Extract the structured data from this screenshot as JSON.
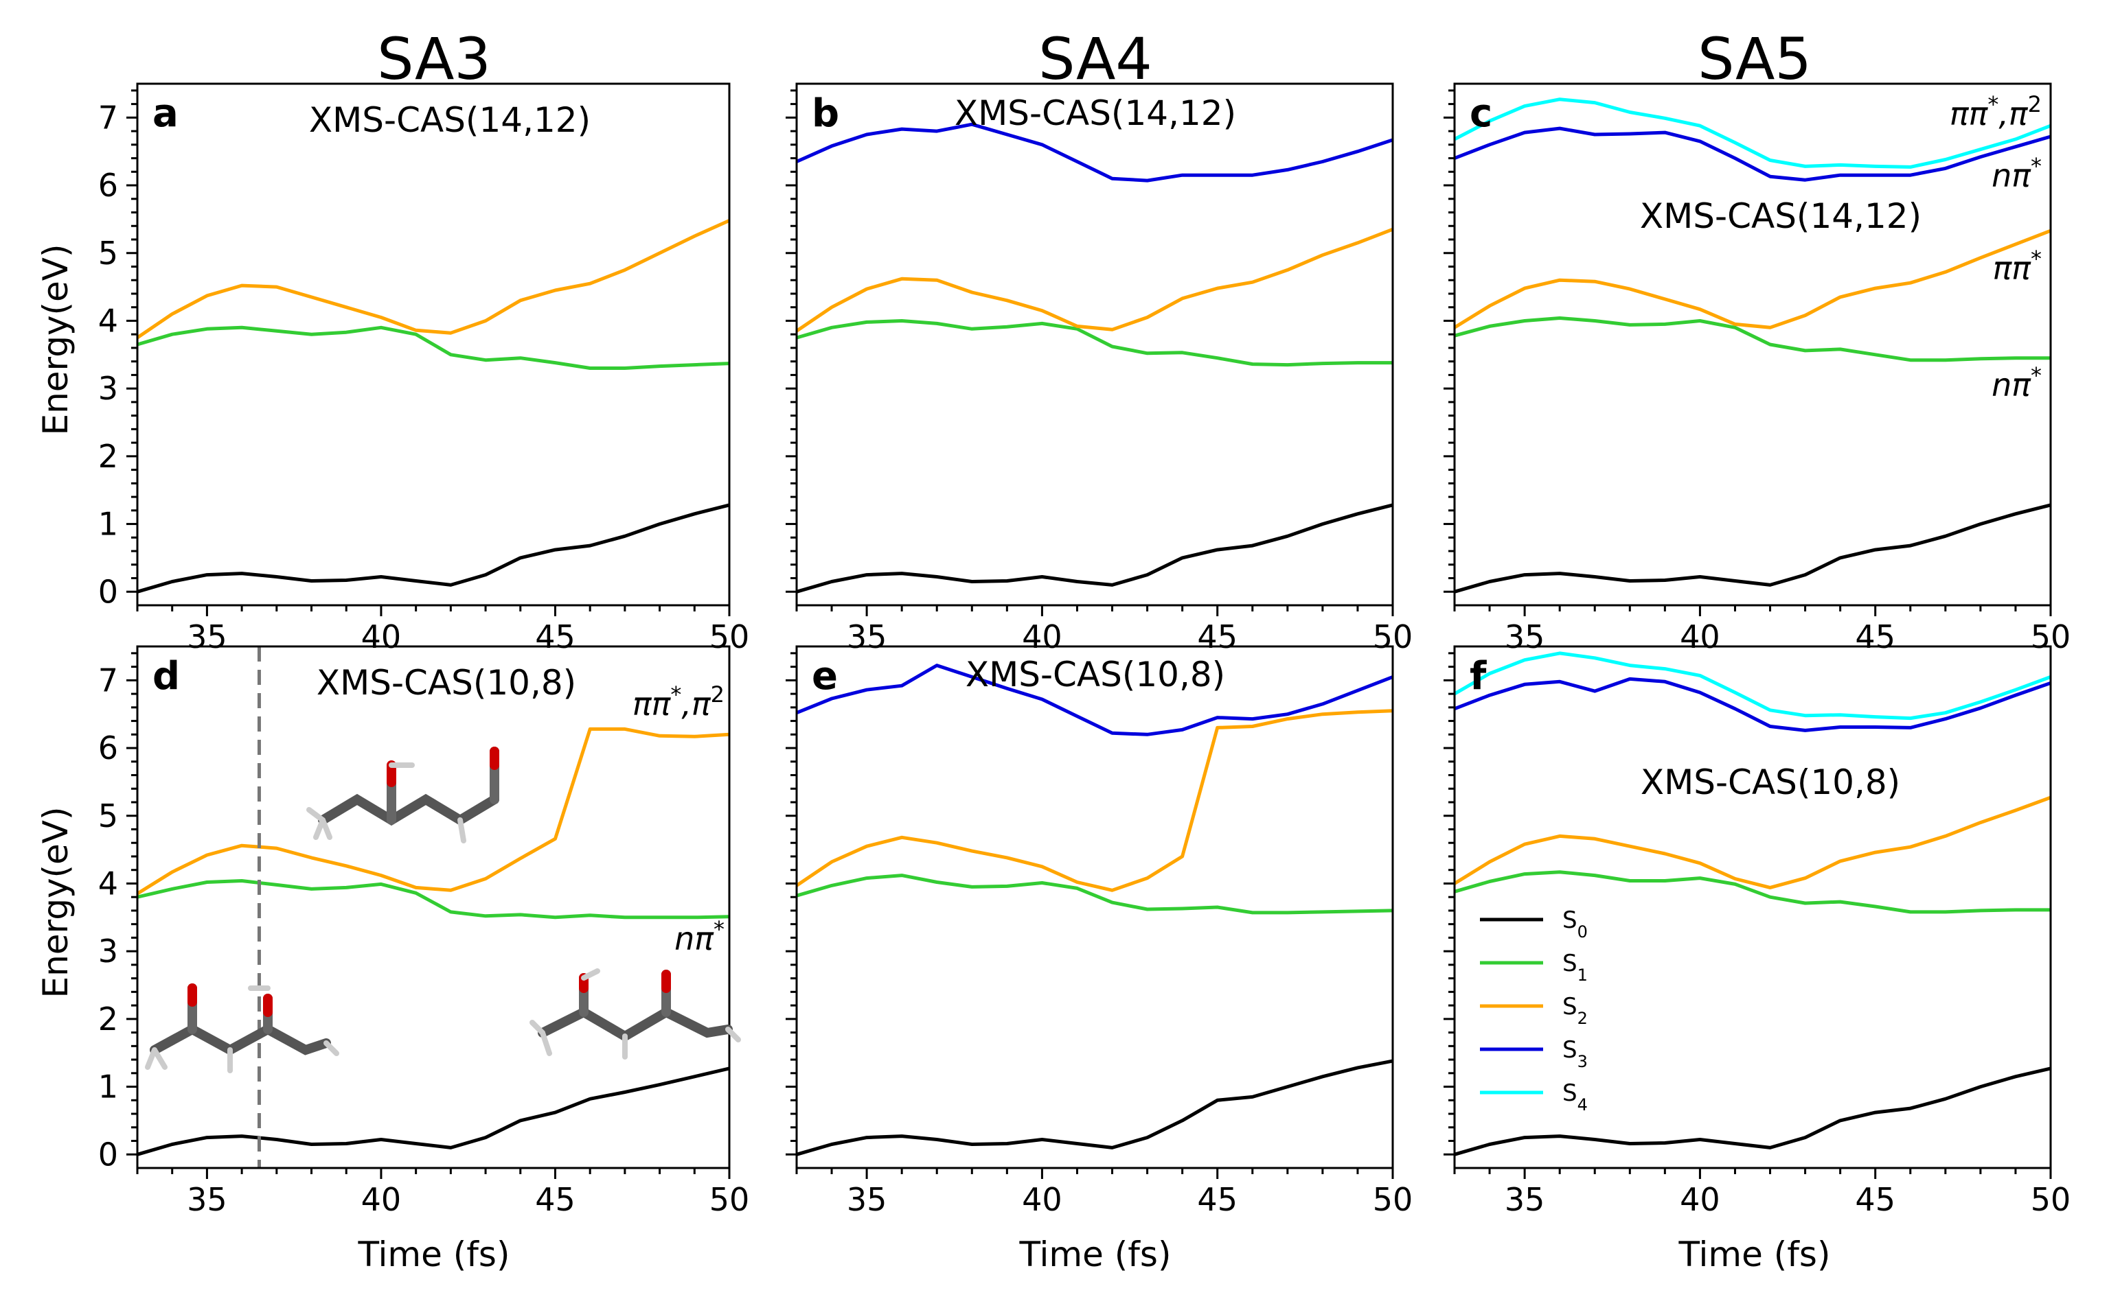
{
  "figure": {
    "column_titles": [
      "SA3",
      "SA4",
      "SA5"
    ],
    "xlabel": "Time (fs)",
    "ylabel": "Energy(eV)"
  },
  "legend": [
    {
      "label": "S",
      "sub": "0",
      "color": "#000000"
    },
    {
      "label": "S",
      "sub": "1",
      "color": "#33cc33"
    },
    {
      "label": "S",
      "sub": "2",
      "color": "#ffa500"
    },
    {
      "label": "S",
      "sub": "3",
      "color": "#0000dd"
    },
    {
      "label": "S",
      "sub": "4",
      "color": "#00ffff"
    }
  ],
  "chart_data": [
    {
      "type": "line",
      "panel": "a",
      "method": "XMS-CAS(14,12)",
      "x": [
        33,
        34,
        35,
        36,
        37,
        38,
        39,
        40,
        41,
        42,
        43,
        44,
        45,
        46,
        47,
        48,
        49,
        50
      ],
      "xlim": [
        33,
        50
      ],
      "ylim": [
        -0.2,
        7.5
      ],
      "xticks": [
        35,
        40,
        45,
        50
      ],
      "yticks": [
        0,
        1,
        2,
        3,
        4,
        5,
        6,
        7
      ],
      "series": [
        {
          "name": "S0",
          "color": "#000000",
          "values": [
            0.0,
            0.15,
            0.25,
            0.27,
            0.22,
            0.16,
            0.17,
            0.22,
            0.16,
            0.1,
            0.25,
            0.5,
            0.62,
            0.68,
            0.82,
            1.0,
            1.15,
            1.28
          ]
        },
        {
          "name": "S1",
          "color": "#33cc33",
          "values": [
            3.65,
            3.8,
            3.88,
            3.9,
            3.85,
            3.8,
            3.83,
            3.9,
            3.8,
            3.5,
            3.42,
            3.45,
            3.38,
            3.3,
            3.3,
            3.33,
            3.35,
            3.37
          ]
        },
        {
          "name": "S2",
          "color": "#ffa500",
          "values": [
            3.75,
            4.1,
            4.37,
            4.52,
            4.5,
            4.35,
            4.2,
            4.05,
            3.86,
            3.82,
            4.0,
            4.3,
            4.45,
            4.55,
            4.75,
            5.0,
            5.25,
            5.48
          ]
        }
      ],
      "annotations": []
    },
    {
      "type": "line",
      "panel": "b",
      "method": "XMS-CAS(14,12)",
      "x": [
        33,
        34,
        35,
        36,
        37,
        38,
        39,
        40,
        41,
        42,
        43,
        44,
        45,
        46,
        47,
        48,
        49,
        50
      ],
      "xlim": [
        33,
        50
      ],
      "ylim": [
        -0.2,
        7.5
      ],
      "xticks": [
        35,
        40,
        45,
        50
      ],
      "yticks": [
        0,
        1,
        2,
        3,
        4,
        5,
        6,
        7
      ],
      "series": [
        {
          "name": "S0",
          "color": "#000000",
          "values": [
            0.0,
            0.15,
            0.25,
            0.27,
            0.22,
            0.15,
            0.16,
            0.22,
            0.15,
            0.1,
            0.25,
            0.5,
            0.62,
            0.68,
            0.82,
            1.0,
            1.15,
            1.28
          ]
        },
        {
          "name": "S1",
          "color": "#33cc33",
          "values": [
            3.75,
            3.9,
            3.98,
            4.0,
            3.96,
            3.88,
            3.91,
            3.96,
            3.88,
            3.62,
            3.52,
            3.53,
            3.45,
            3.36,
            3.35,
            3.37,
            3.38,
            3.38
          ]
        },
        {
          "name": "S2",
          "color": "#ffa500",
          "values": [
            3.85,
            4.2,
            4.47,
            4.62,
            4.6,
            4.42,
            4.3,
            4.15,
            3.92,
            3.87,
            4.05,
            4.33,
            4.48,
            4.57,
            4.75,
            4.97,
            5.15,
            5.35
          ]
        },
        {
          "name": "S3",
          "color": "#0000dd",
          "values": [
            6.35,
            6.58,
            6.75,
            6.83,
            6.8,
            6.9,
            6.75,
            6.6,
            6.35,
            6.1,
            6.07,
            6.15,
            6.15,
            6.15,
            6.23,
            6.35,
            6.5,
            6.67
          ]
        }
      ],
      "annotations": []
    },
    {
      "type": "line",
      "panel": "c",
      "method": "XMS-CAS(14,12)",
      "x": [
        33,
        34,
        35,
        36,
        37,
        38,
        39,
        40,
        41,
        42,
        43,
        44,
        45,
        46,
        47,
        48,
        49,
        50
      ],
      "xlim": [
        33,
        50
      ],
      "ylim": [
        -0.2,
        7.5
      ],
      "xticks": [
        35,
        40,
        45,
        50
      ],
      "yticks": [
        0,
        1,
        2,
        3,
        4,
        5,
        6,
        7
      ],
      "series": [
        {
          "name": "S0",
          "color": "#000000",
          "values": [
            0.0,
            0.15,
            0.25,
            0.27,
            0.22,
            0.16,
            0.17,
            0.22,
            0.16,
            0.1,
            0.25,
            0.5,
            0.62,
            0.68,
            0.82,
            1.0,
            1.15,
            1.28
          ]
        },
        {
          "name": "S1",
          "color": "#33cc33",
          "values": [
            3.78,
            3.92,
            4.0,
            4.04,
            4.0,
            3.94,
            3.95,
            4.0,
            3.9,
            3.65,
            3.56,
            3.58,
            3.5,
            3.42,
            3.42,
            3.44,
            3.45,
            3.45
          ]
        },
        {
          "name": "S2",
          "color": "#ffa500",
          "values": [
            3.9,
            4.22,
            4.48,
            4.6,
            4.58,
            4.47,
            4.32,
            4.17,
            3.95,
            3.9,
            4.08,
            4.35,
            4.48,
            4.56,
            4.72,
            4.93,
            5.13,
            5.33
          ]
        },
        {
          "name": "S3",
          "color": "#0000dd",
          "values": [
            6.4,
            6.6,
            6.78,
            6.84,
            6.75,
            6.76,
            6.78,
            6.65,
            6.4,
            6.13,
            6.08,
            6.15,
            6.15,
            6.15,
            6.25,
            6.42,
            6.57,
            6.72
          ]
        },
        {
          "name": "S4",
          "color": "#00ffff",
          "values": [
            6.68,
            6.95,
            7.17,
            7.27,
            7.22,
            7.08,
            6.99,
            6.88,
            6.63,
            6.37,
            6.28,
            6.3,
            6.28,
            6.27,
            6.38,
            6.53,
            6.68,
            6.88
          ]
        }
      ],
      "annotations": [
        {
          "text": "ππ*,π²",
          "near": "top-right"
        },
        {
          "text": "nπ*",
          "near": "upper-right"
        },
        {
          "text": "ππ*",
          "near": "middle-right"
        },
        {
          "text": "nπ*",
          "near": "lower-middle-right"
        }
      ]
    },
    {
      "type": "line",
      "panel": "d",
      "method": "XMS-CAS(10,8)",
      "x": [
        33,
        34,
        35,
        36,
        37,
        38,
        39,
        40,
        41,
        42,
        43,
        44,
        45,
        46,
        47,
        48,
        49,
        50
      ],
      "xlim": [
        33,
        50
      ],
      "ylim": [
        -0.2,
        7.5
      ],
      "xticks": [
        35,
        40,
        45,
        50
      ],
      "yticks": [
        0,
        1,
        2,
        3,
        4,
        5,
        6,
        7
      ],
      "dashed_vline_x": 36.5,
      "series": [
        {
          "name": "S0",
          "color": "#000000",
          "values": [
            0.0,
            0.15,
            0.25,
            0.27,
            0.22,
            0.15,
            0.16,
            0.22,
            0.16,
            0.1,
            0.25,
            0.5,
            0.62,
            0.82,
            0.92,
            1.03,
            1.15,
            1.27
          ]
        },
        {
          "name": "S1",
          "color": "#33cc33",
          "values": [
            3.8,
            3.92,
            4.02,
            4.04,
            3.98,
            3.92,
            3.94,
            3.99,
            3.86,
            3.58,
            3.52,
            3.54,
            3.5,
            3.53,
            3.5,
            3.5,
            3.5,
            3.51
          ]
        },
        {
          "name": "S2",
          "color": "#ffa500",
          "values": [
            3.85,
            4.17,
            4.42,
            4.56,
            4.52,
            4.38,
            4.26,
            4.12,
            3.94,
            3.9,
            4.07,
            4.37,
            4.66,
            6.28,
            6.28,
            6.18,
            6.17,
            6.2
          ]
        }
      ],
      "annotations": [
        {
          "text": "ππ*,π²",
          "near": "top-right"
        },
        {
          "text": "nπ*",
          "near": "middle-right"
        }
      ]
    },
    {
      "type": "line",
      "panel": "e",
      "method": "XMS-CAS(10,8)",
      "x": [
        33,
        34,
        35,
        36,
        37,
        38,
        39,
        40,
        41,
        42,
        43,
        44,
        45,
        46,
        47,
        48,
        49,
        50
      ],
      "xlim": [
        33,
        50
      ],
      "ylim": [
        -0.2,
        7.5
      ],
      "xticks": [
        35,
        40,
        45,
        50
      ],
      "yticks": [
        0,
        1,
        2,
        3,
        4,
        5,
        6,
        7
      ],
      "series": [
        {
          "name": "S0",
          "color": "#000000",
          "values": [
            0.0,
            0.15,
            0.25,
            0.27,
            0.22,
            0.15,
            0.16,
            0.22,
            0.16,
            0.1,
            0.25,
            0.5,
            0.8,
            0.85,
            1.0,
            1.15,
            1.28,
            1.38
          ]
        },
        {
          "name": "S1",
          "color": "#33cc33",
          "values": [
            3.82,
            3.97,
            4.08,
            4.12,
            4.02,
            3.95,
            3.96,
            4.01,
            3.93,
            3.72,
            3.62,
            3.63,
            3.65,
            3.57,
            3.57,
            3.58,
            3.59,
            3.6
          ]
        },
        {
          "name": "S2",
          "color": "#ffa500",
          "values": [
            3.97,
            4.32,
            4.55,
            4.68,
            4.6,
            4.48,
            4.38,
            4.25,
            4.02,
            3.9,
            4.08,
            4.4,
            6.3,
            6.32,
            6.43,
            6.5,
            6.53,
            6.55
          ]
        },
        {
          "name": "S3",
          "color": "#0000dd",
          "values": [
            6.52,
            6.73,
            6.86,
            6.92,
            7.22,
            7.05,
            6.88,
            6.72,
            6.47,
            6.22,
            6.2,
            6.27,
            6.45,
            6.43,
            6.5,
            6.65,
            6.85,
            7.05
          ]
        }
      ],
      "annotations": []
    },
    {
      "type": "line",
      "panel": "f",
      "method": "XMS-CAS(10,8)",
      "x": [
        33,
        34,
        35,
        36,
        37,
        38,
        39,
        40,
        41,
        42,
        43,
        44,
        45,
        46,
        47,
        48,
        49,
        50
      ],
      "xlim": [
        33,
        50
      ],
      "ylim": [
        -0.2,
        7.5
      ],
      "xticks": [
        35,
        40,
        45,
        50
      ],
      "yticks": [
        0,
        1,
        2,
        3,
        4,
        5,
        6,
        7
      ],
      "series": [
        {
          "name": "S0",
          "color": "#000000",
          "values": [
            0.0,
            0.15,
            0.25,
            0.27,
            0.22,
            0.16,
            0.17,
            0.22,
            0.16,
            0.1,
            0.25,
            0.5,
            0.62,
            0.68,
            0.82,
            1.0,
            1.15,
            1.27
          ]
        },
        {
          "name": "S1",
          "color": "#33cc33",
          "values": [
            3.88,
            4.03,
            4.14,
            4.17,
            4.12,
            4.04,
            4.04,
            4.08,
            3.99,
            3.8,
            3.71,
            3.73,
            3.66,
            3.58,
            3.58,
            3.6,
            3.61,
            3.61
          ]
        },
        {
          "name": "S2",
          "color": "#ffa500",
          "values": [
            4.0,
            4.32,
            4.58,
            4.7,
            4.66,
            4.55,
            4.44,
            4.3,
            4.07,
            3.94,
            4.08,
            4.33,
            4.46,
            4.54,
            4.7,
            4.9,
            5.08,
            5.27
          ]
        },
        {
          "name": "S3",
          "color": "#0000dd",
          "values": [
            6.58,
            6.78,
            6.94,
            6.98,
            6.84,
            7.02,
            6.98,
            6.82,
            6.58,
            6.32,
            6.26,
            6.31,
            6.31,
            6.3,
            6.43,
            6.59,
            6.78,
            6.96
          ]
        },
        {
          "name": "S4",
          "color": "#00ffff",
          "values": [
            6.8,
            7.1,
            7.3,
            7.4,
            7.33,
            7.22,
            7.17,
            7.07,
            6.82,
            6.56,
            6.48,
            6.49,
            6.46,
            6.44,
            6.52,
            6.68,
            6.86,
            7.05
          ]
        }
      ],
      "annotations": []
    }
  ]
}
